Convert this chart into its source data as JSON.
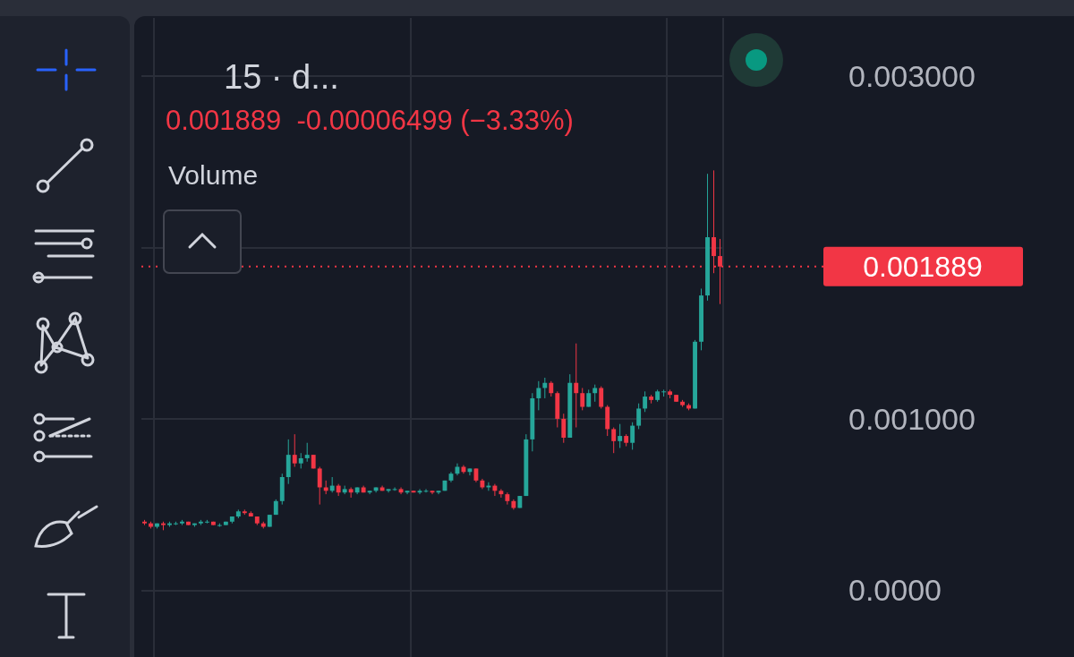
{
  "chart_data": {
    "type": "candlestick",
    "title": "15 · d...",
    "subtitle": "0.001889  -0.00006499 (−3.33%)",
    "annotations": [
      "Volume"
    ],
    "categories": [
      null,
      null,
      null,
      null,
      null,
      null,
      null,
      null,
      null,
      null,
      null,
      null,
      null,
      null,
      null,
      null,
      null,
      null,
      null,
      null,
      null,
      null,
      null,
      null,
      null,
      null,
      null,
      null,
      null,
      null,
      null,
      null,
      null,
      null,
      null,
      null,
      null,
      null,
      null,
      null,
      null,
      null,
      null,
      null,
      null,
      null,
      null,
      null,
      null,
      null,
      null,
      null,
      null,
      null,
      null,
      null,
      null,
      null,
      null,
      null,
      null,
      null,
      null,
      null,
      null,
      null,
      null,
      null,
      null,
      null,
      null,
      null,
      null,
      null,
      null,
      null,
      null,
      null,
      null,
      null,
      null,
      null,
      null,
      null,
      null,
      null,
      null,
      null,
      null,
      null,
      null,
      null,
      null
    ],
    "ohlc": [
      [
        0.0004,
        0.00041,
        0.00038,
        0.00039
      ],
      [
        0.00039,
        0.0004,
        0.00036,
        0.00037
      ],
      [
        0.00037,
        0.00039,
        0.00036,
        0.00039
      ],
      [
        0.00039,
        0.0004,
        0.00035,
        0.00038
      ],
      [
        0.00038,
        0.0004,
        0.00037,
        0.00039
      ],
      [
        0.00039,
        0.0004,
        0.00038,
        0.00039
      ],
      [
        0.00039,
        0.00041,
        0.00038,
        0.0004
      ],
      [
        0.0004,
        0.0004,
        0.00038,
        0.00038
      ],
      [
        0.00038,
        0.00039,
        0.00037,
        0.00039
      ],
      [
        0.00039,
        0.00041,
        0.00038,
        0.0004
      ],
      [
        0.0004,
        0.00041,
        0.00039,
        0.0004
      ],
      [
        0.0004,
        0.0004,
        0.00038,
        0.00038
      ],
      [
        0.00038,
        0.00039,
        0.00037,
        0.00038
      ],
      [
        0.00038,
        0.0004,
        0.00038,
        0.0004
      ],
      [
        0.0004,
        0.00043,
        0.00039,
        0.00043
      ],
      [
        0.00043,
        0.00047,
        0.00042,
        0.00046
      ],
      [
        0.00046,
        0.00047,
        0.00044,
        0.00045
      ],
      [
        0.00045,
        0.00046,
        0.00043,
        0.00043
      ],
      [
        0.00043,
        0.00043,
        0.00038,
        0.00039
      ],
      [
        0.00039,
        0.0004,
        0.00036,
        0.00037
      ],
      [
        0.00037,
        0.00044,
        0.00037,
        0.00044
      ],
      [
        0.00044,
        0.00053,
        0.00044,
        0.00052
      ],
      [
        0.00052,
        0.00068,
        0.0005,
        0.00066
      ],
      [
        0.00066,
        0.00088,
        0.00062,
        0.00079
      ],
      [
        0.00079,
        0.00091,
        0.00072,
        0.00074
      ],
      [
        0.00074,
        0.0008,
        0.00071,
        0.00077
      ],
      [
        0.00077,
        0.00086,
        0.00075,
        0.00079
      ],
      [
        0.00079,
        0.00079,
        0.00071,
        0.00071
      ],
      [
        0.00071,
        0.00072,
        0.0005,
        0.0006
      ],
      [
        0.0006,
        0.00064,
        0.00056,
        0.00058
      ],
      [
        0.00058,
        0.00066,
        0.00057,
        0.00061
      ],
      [
        0.00061,
        0.00062,
        0.00055,
        0.00057
      ],
      [
        0.00057,
        0.00061,
        0.00056,
        0.00059
      ],
      [
        0.00059,
        0.0006,
        0.00054,
        0.00057
      ],
      [
        0.00057,
        0.0006,
        0.00056,
        0.0006
      ],
      [
        0.0006,
        0.00061,
        0.00057,
        0.00057
      ],
      [
        0.00057,
        0.00058,
        0.00056,
        0.00058
      ],
      [
        0.00058,
        0.0006,
        0.00057,
        0.0006
      ],
      [
        0.0006,
        0.00061,
        0.00058,
        0.00058
      ],
      [
        0.00058,
        0.00059,
        0.00057,
        0.00059
      ],
      [
        0.00059,
        0.0006,
        0.00058,
        0.00059
      ],
      [
        0.00059,
        0.0006,
        0.00056,
        0.00057
      ],
      [
        0.00057,
        0.00058,
        0.00056,
        0.00058
      ],
      [
        0.00058,
        0.00058,
        0.00057,
        0.00057
      ],
      [
        0.00057,
        0.00059,
        0.00056,
        0.00058
      ],
      [
        0.00058,
        0.00059,
        0.00057,
        0.00058
      ],
      [
        0.00058,
        0.00058,
        0.00056,
        0.00057
      ],
      [
        0.00057,
        0.00058,
        0.00056,
        0.00058
      ],
      [
        0.00058,
        0.00064,
        0.00058,
        0.00064
      ],
      [
        0.00064,
        0.00069,
        0.00063,
        0.00068
      ],
      [
        0.00068,
        0.00074,
        0.00067,
        0.00072
      ],
      [
        0.00072,
        0.00073,
        0.00068,
        0.00069
      ],
      [
        0.00069,
        0.00071,
        0.00067,
        0.00071
      ],
      [
        0.00071,
        0.00071,
        0.00063,
        0.00064
      ],
      [
        0.00064,
        0.00065,
        0.00059,
        0.0006
      ],
      [
        0.0006,
        0.00063,
        0.00058,
        0.00061
      ],
      [
        0.00061,
        0.00062,
        0.00055,
        0.00058
      ],
      [
        0.00058,
        0.00059,
        0.00054,
        0.00056
      ],
      [
        0.00056,
        0.00057,
        0.0005,
        0.00052
      ],
      [
        0.00052,
        0.00053,
        0.00047,
        0.00048
      ],
      [
        0.00048,
        0.00055,
        0.00048,
        0.00055
      ],
      [
        0.00055,
        0.00091,
        0.00055,
        0.00088
      ],
      [
        0.00088,
        0.00115,
        0.00081,
        0.00112
      ],
      [
        0.00112,
        0.00122,
        0.00105,
        0.00118
      ],
      [
        0.00118,
        0.00124,
        0.00112,
        0.00121
      ],
      [
        0.00121,
        0.00122,
        0.00113,
        0.00115
      ],
      [
        0.00115,
        0.00116,
        0.00095,
        0.001
      ],
      [
        0.001,
        0.00103,
        0.00086,
        0.00089
      ],
      [
        0.00089,
        0.00126,
        0.00089,
        0.00121
      ],
      [
        0.00121,
        0.00144,
        0.00095,
        0.00115
      ],
      [
        0.00115,
        0.00118,
        0.00105,
        0.00107
      ],
      [
        0.00107,
        0.00117,
        0.00107,
        0.00115
      ],
      [
        0.00115,
        0.0012,
        0.0011,
        0.00118
      ],
      [
        0.00118,
        0.00119,
        0.00106,
        0.00107
      ],
      [
        0.00107,
        0.00108,
        0.0009,
        0.00094
      ],
      [
        0.00094,
        0.00095,
        0.0008,
        0.00087
      ],
      [
        0.00087,
        0.00097,
        0.00083,
        0.0009
      ],
      [
        0.0009,
        0.00091,
        0.00084,
        0.00086
      ],
      [
        0.00086,
        0.00098,
        0.00082,
        0.00096
      ],
      [
        0.00096,
        0.00109,
        0.00094,
        0.00106
      ],
      [
        0.00106,
        0.00116,
        0.00104,
        0.00113
      ],
      [
        0.00113,
        0.00114,
        0.00109,
        0.00111
      ],
      [
        0.00111,
        0.00117,
        0.0011,
        0.00116
      ],
      [
        0.00116,
        0.00117,
        0.00113,
        0.00116
      ],
      [
        0.00116,
        0.00117,
        0.00112,
        0.00114
      ],
      [
        0.00114,
        0.00114,
        0.0011,
        0.0011
      ],
      [
        0.0011,
        0.00111,
        0.00107,
        0.00108
      ],
      [
        0.00108,
        0.00109,
        0.00105,
        0.00106
      ],
      [
        0.00106,
        0.00146,
        0.00106,
        0.00145
      ],
      [
        0.00145,
        0.00176,
        0.0014,
        0.00172
      ],
      [
        0.00172,
        0.00243,
        0.00169,
        0.00206
      ],
      [
        0.00206,
        0.00245,
        0.00185,
        0.00195
      ],
      [
        0.00195,
        0.00205,
        0.00167,
        0.001889
      ]
    ],
    "ylim": [
      -0.00039,
      0.00334
    ],
    "yticks": [
      {
        "value": 0,
        "label": "0.0000"
      },
      {
        "value": 0.001,
        "label": "0.001000"
      },
      {
        "value": 0.002,
        "label": null
      },
      {
        "value": 0.003,
        "label": "0.003000"
      }
    ],
    "ref_lines": [
      {
        "axis": "y",
        "value": 0.001889,
        "label": "0.001889",
        "color": "#f23645",
        "line_style": "dotted"
      }
    ],
    "grid": true,
    "tick_labels": "y"
  }
}
